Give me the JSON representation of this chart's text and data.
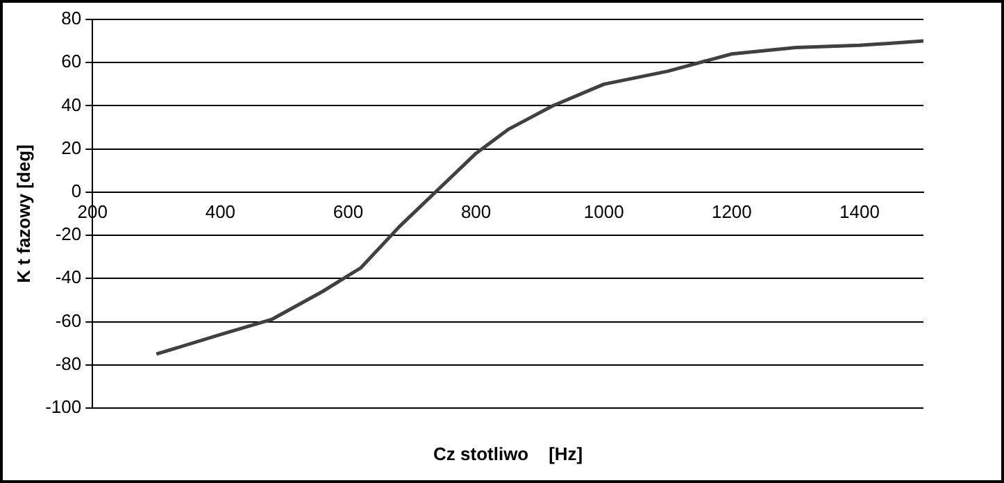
{
  "chart_data": {
    "type": "line",
    "xlabel": "Cz stotliwo    [Hz]",
    "ylabel": "K t fazowy [deg]",
    "x": [
      300,
      400,
      480,
      560,
      620,
      680,
      740,
      800,
      850,
      920,
      1000,
      1100,
      1200,
      1300,
      1400,
      1500
    ],
    "series": [
      {
        "color": "#404040",
        "values": [
          -75,
          -66,
          -59,
          -46,
          -35,
          -16,
          1,
          18,
          29,
          40,
          50,
          56,
          64,
          67,
          68,
          70
        ]
      }
    ],
    "xlim": [
      200,
      1500
    ],
    "xticks": [
      200,
      400,
      600,
      800,
      1000,
      1200,
      1400
    ],
    "ylim": [
      -100,
      80
    ],
    "yticks": [
      -100,
      -80,
      -60,
      -40,
      -20,
      0,
      20,
      40,
      60,
      80
    ],
    "grid": "y",
    "legend": false,
    "marker": "none",
    "line_style": "solid"
  }
}
